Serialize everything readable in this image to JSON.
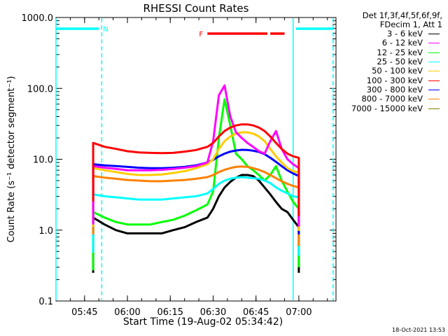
{
  "figure": {
    "footer_date": "18-Oct-2021 13:53"
  },
  "chart_data": {
    "type": "line",
    "title": "RHESSI Count Rates",
    "xlabel": "Start Time (19-Aug-02 05:34:42)",
    "ylabel": "Count Rate (s⁻¹ detector segment⁻¹)",
    "yscale": "log",
    "ylim": [
      0.1,
      1000
    ],
    "xlim": [
      "05:35",
      "07:13"
    ],
    "x_ticks": [
      "05:45",
      "06:00",
      "06:15",
      "06:30",
      "06:45",
      "07:00"
    ],
    "y_ticks": [
      "0.1",
      "1.0",
      "10.0",
      "100.0",
      "1000.0"
    ],
    "legend_header": [
      "Det 1f,3f,4f,5f,6f,9f,",
      "FDecim 1, Att 1"
    ],
    "legend_position": "right",
    "x": [
      "05:48",
      "05:52",
      "05:56",
      "06:00",
      "06:04",
      "06:08",
      "06:12",
      "06:16",
      "06:20",
      "06:24",
      "06:28",
      "06:30",
      "06:32",
      "06:34",
      "06:36",
      "06:38",
      "06:40",
      "06:42",
      "06:44",
      "06:46",
      "06:48",
      "06:50",
      "06:52",
      "06:54",
      "06:56",
      "06:58",
      "07:00"
    ],
    "series": [
      {
        "name": "3 - 6 keV",
        "color": "#000000",
        "values": [
          1.5,
          1.2,
          1.0,
          0.9,
          0.9,
          0.9,
          0.9,
          1.0,
          1.1,
          1.3,
          1.5,
          2.0,
          3.0,
          4.0,
          4.8,
          5.5,
          6.0,
          6.0,
          5.8,
          5.0,
          4.0,
          3.2,
          2.5,
          2.0,
          1.8,
          1.4,
          1.1
        ]
      },
      {
        "name": "6 - 12 keV",
        "color": "#ff00ff",
        "values": [
          8.0,
          7.6,
          7.3,
          7.0,
          7.0,
          7.0,
          7.1,
          7.3,
          7.6,
          8.0,
          9.0,
          18,
          80,
          110,
          40,
          24,
          20,
          17,
          15,
          13,
          12,
          18,
          25,
          14,
          10,
          8.5,
          7.5
        ]
      },
      {
        "name": "12 - 25 keV",
        "color": "#00ff00",
        "values": [
          1.8,
          1.5,
          1.3,
          1.2,
          1.2,
          1.2,
          1.3,
          1.4,
          1.6,
          1.9,
          2.3,
          3.5,
          20,
          70,
          30,
          12,
          10,
          8,
          7,
          6,
          5,
          6,
          8,
          5,
          3.5,
          2.5,
          2.0
        ]
      },
      {
        "name": "25 - 50 keV",
        "color": "#00ffff",
        "values": [
          3.2,
          3.0,
          2.9,
          2.8,
          2.7,
          2.7,
          2.7,
          2.8,
          2.9,
          3.0,
          3.3,
          3.8,
          4.5,
          5.0,
          5.3,
          5.5,
          5.6,
          5.5,
          5.4,
          5.3,
          5.0,
          4.6,
          4.0,
          3.6,
          3.3,
          3.0,
          2.9
        ]
      },
      {
        "name": "50 - 100 keV",
        "color": "#ffcc00",
        "values": [
          7.5,
          7.0,
          6.6,
          6.2,
          6.0,
          6.0,
          6.1,
          6.4,
          6.8,
          7.5,
          8.5,
          10,
          14,
          18,
          21,
          23,
          24,
          24,
          23,
          21,
          18,
          14,
          11,
          9,
          7.5,
          6.8,
          6.5
        ]
      },
      {
        "name": "100 - 300 keV",
        "color": "#ff0000",
        "values": [
          17,
          15,
          14,
          13,
          12.5,
          12.3,
          12.2,
          12.3,
          12.8,
          13.5,
          15,
          17,
          21,
          25,
          28,
          30,
          31,
          31,
          30,
          28,
          25,
          21,
          17,
          14,
          12,
          11,
          10.5
        ]
      },
      {
        "name": "300 - 800 keV",
        "color": "#0000ff",
        "values": [
          8.5,
          8.2,
          8.0,
          7.8,
          7.6,
          7.5,
          7.5,
          7.6,
          7.8,
          8.2,
          9.0,
          9.8,
          11,
          12,
          12.8,
          13.3,
          13.6,
          13.5,
          13.2,
          12.7,
          11.8,
          10.5,
          9.2,
          8.0,
          7.0,
          6.3,
          5.8
        ]
      },
      {
        "name": "800 - 7000 keV",
        "color": "#ff8000",
        "values": [
          5.8,
          5.5,
          5.3,
          5.1,
          5.0,
          4.9,
          4.9,
          5.0,
          5.1,
          5.3,
          5.6,
          6.0,
          6.6,
          7.1,
          7.5,
          7.8,
          7.9,
          7.8,
          7.5,
          7.1,
          6.6,
          6.0,
          5.4,
          4.9,
          4.5,
          4.2,
          4.0
        ]
      },
      {
        "name": "7000 - 15000 keV",
        "color": "#808000",
        "values": [
          null,
          null,
          null,
          null,
          null,
          null,
          null,
          null,
          null,
          null,
          null,
          null,
          null,
          null,
          null,
          null,
          null,
          null,
          null,
          null,
          null,
          null,
          null,
          null,
          null,
          null,
          null
        ]
      }
    ],
    "annotations": [
      {
        "label": "N",
        "color": "#00ffff",
        "segments": [
          [
            "05:35",
            "05:50"
          ],
          [
            "06:59",
            "07:12"
          ]
        ]
      },
      {
        "label": "F",
        "color": "#ff0000",
        "segments": [
          [
            "06:28",
            "06:49"
          ],
          [
            "06:50",
            "06:55"
          ]
        ]
      }
    ],
    "vertical_markers": [
      {
        "color": "#00ffff",
        "style": "solid",
        "x": "05:35"
      },
      {
        "color": "#00ffff",
        "style": "dashed",
        "x": "05:51"
      },
      {
        "color": "#00ffff",
        "style": "solid",
        "x": "06:58"
      },
      {
        "color": "#00ffff",
        "style": "dashed",
        "x": "07:12"
      }
    ],
    "data_start": "05:48",
    "data_end": "07:00",
    "grid": false
  }
}
